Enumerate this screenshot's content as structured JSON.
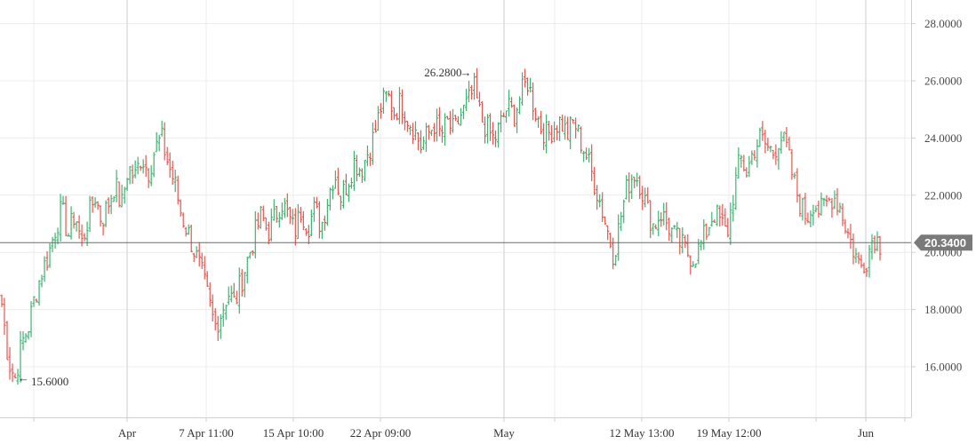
{
  "chart_data": {
    "type": "ohlc",
    "ylim": [
      15,
      29
    ],
    "y_ticks": [
      "16.0000",
      "18.0000",
      "20.0000",
      "22.0000",
      "24.0000",
      "26.0000",
      "28.0000"
    ],
    "y_tick_values": [
      16,
      18,
      20,
      22,
      24,
      26,
      28
    ],
    "x_tick_labels": [
      {
        "label": "Apr",
        "major": true
      },
      {
        "label": "7 Apr 11:00",
        "major": false
      },
      {
        "label": "15 Apr 10:00",
        "major": false
      },
      {
        "label": "22 Apr 09:00",
        "major": false
      },
      {
        "label": "May",
        "major": true
      },
      {
        "label": "12 May 13:00",
        "major": false
      },
      {
        "label": "19 May 12:00",
        "major": false
      },
      {
        "label": "Jun",
        "major": true
      }
    ],
    "last_price": "20.3400",
    "last_value": 20.34,
    "max_annotation": {
      "label": "26.2800",
      "value": 26.28
    },
    "min_annotation": {
      "label": "15.6000",
      "value": 15.6
    },
    "colors": {
      "up": "#3cb371",
      "down": "#e8554e",
      "last_line": "#6b6b6b",
      "last_badge": "#7a7a7a",
      "grid": "#ececec",
      "major_grid": "#d9d9d9"
    },
    "close_path": [
      18.2,
      16.2,
      15.6,
      16.8,
      17.4,
      18.5,
      19.3,
      19.9,
      20.8,
      21.5,
      20.6,
      21.4,
      20.3,
      21.2,
      22.0,
      21.1,
      21.7,
      22.4,
      21.6,
      23.0,
      22.6,
      23.4,
      22.8,
      23.6,
      24.0,
      23.1,
      22.4,
      21.3,
      20.7,
      20.0,
      19.3,
      18.4,
      17.4,
      17.9,
      18.6,
      18.2,
      19.0,
      19.8,
      20.6,
      21.3,
      20.7,
      21.2,
      21.8,
      21.3,
      20.7,
      21.5,
      20.9,
      21.5,
      20.9,
      21.9,
      22.8,
      21.9,
      22.5,
      23.2,
      22.9,
      23.5,
      24.1,
      25.1,
      25.5,
      24.9,
      25.3,
      24.7,
      24.3,
      23.7,
      24.1,
      24.5,
      24.1,
      24.5,
      24.2,
      24.8,
      25.2,
      25.7,
      24.7,
      24.3,
      23.9,
      24.5,
      25.1,
      24.8,
      25.5,
      26.0,
      25.1,
      24.4,
      24.1,
      24.4,
      24.6,
      24.1,
      24.6,
      23.9,
      23.3,
      22.5,
      21.7,
      20.8,
      19.9,
      21.2,
      22.3,
      22.8,
      22.4,
      21.5,
      20.9,
      21.4,
      21.0,
      20.6,
      20.3,
      20.0,
      19.8,
      20.2,
      20.8,
      21.4,
      21.1,
      20.6,
      22.1,
      23.3,
      22.8,
      23.6,
      24.0,
      23.7,
      23.5,
      24.1,
      23.6,
      22.5,
      21.7,
      21.2,
      21.8,
      21.4,
      21.7,
      22.0,
      21.6,
      20.8,
      20.1,
      19.5,
      19.8,
      20.6,
      20.3
    ]
  }
}
